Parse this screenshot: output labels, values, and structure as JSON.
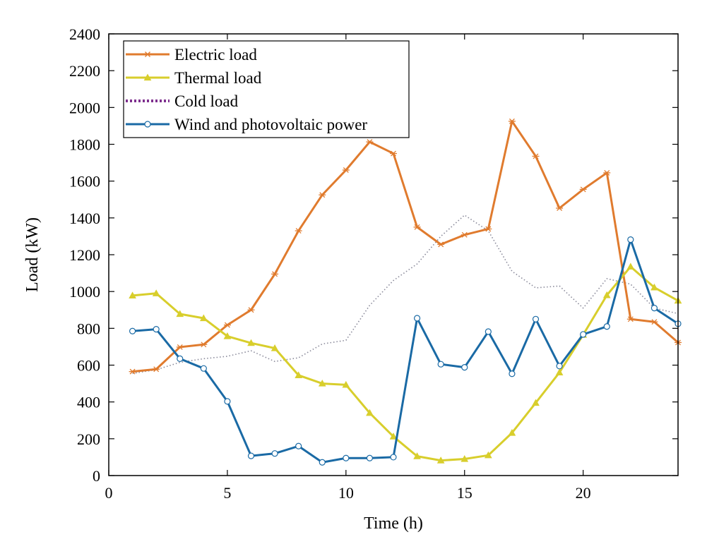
{
  "chart_data": {
    "type": "line",
    "title": "",
    "xlabel": "Time (h)",
    "ylabel": "Load (kW)",
    "xlim": [
      0,
      24
    ],
    "ylim": [
      0,
      2400
    ],
    "xticks": [
      0,
      5,
      10,
      15,
      20
    ],
    "yticks": [
      0,
      200,
      400,
      600,
      800,
      1000,
      1200,
      1400,
      1600,
      1800,
      2000,
      2200,
      2400
    ],
    "grid": false,
    "legend_position": "top-left",
    "x": [
      1,
      2,
      3,
      4,
      5,
      6,
      7,
      8,
      9,
      10,
      11,
      12,
      13,
      14,
      15,
      16,
      17,
      18,
      19,
      20,
      21,
      22,
      23,
      24
    ],
    "series": [
      {
        "name": "Electric load",
        "color": "#E07B2E",
        "style": "solid",
        "marker": "asterisk",
        "values": [
          565,
          578,
          698,
          712,
          818,
          900,
          1095,
          1330,
          1525,
          1660,
          1813,
          1750,
          1350,
          1256,
          1308,
          1340,
          1925,
          1735,
          1453,
          1555,
          1645,
          850,
          835,
          723
        ]
      },
      {
        "name": "Thermal load",
        "color": "#D8CE2C",
        "style": "solid",
        "marker": "triangle",
        "values": [
          978,
          990,
          878,
          855,
          757,
          720,
          692,
          545,
          500,
          493,
          340,
          212,
          105,
          82,
          90,
          110,
          232,
          395,
          560,
          765,
          980,
          1135,
          1022,
          950
        ]
      },
      {
        "name": "Cold load",
        "color": "#7E2F8E",
        "style": "dotted",
        "marker": "none",
        "values": [
          555,
          575,
          615,
          635,
          648,
          678,
          620,
          640,
          715,
          735,
          925,
          1060,
          1150,
          1300,
          1415,
          1330,
          1110,
          1020,
          1030,
          910,
          1070,
          1040,
          910,
          880
        ]
      },
      {
        "name": "Wind and photovoltaic power",
        "color": "#1A6AA5",
        "style": "solid",
        "marker": "circle",
        "values": [
          785,
          795,
          635,
          582,
          403,
          107,
          120,
          160,
          72,
          95,
          95,
          100,
          855,
          605,
          588,
          782,
          553,
          850,
          595,
          767,
          810,
          1282,
          910,
          825
        ]
      }
    ]
  }
}
